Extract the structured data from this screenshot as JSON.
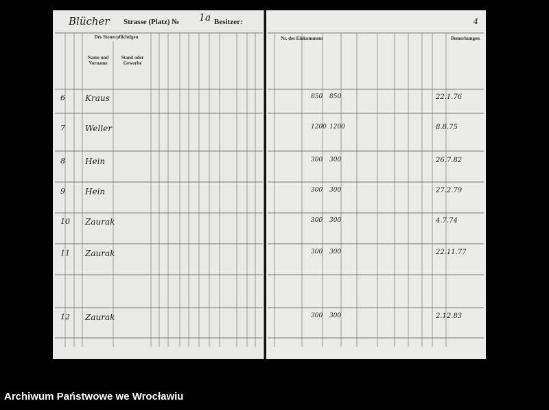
{
  "page": {
    "street": "Blücher",
    "street_label": "Strasse (Platz) №",
    "number": "1a",
    "owner_label": "Besitzer:",
    "page_number": "4",
    "headers": [
      "Des Steuerpflichtigen",
      "Name und Vorname",
      "Stand oder Gewerbe",
      "Nr. des Einkommens",
      "Bemerkungen"
    ],
    "entries": [
      {
        "num": "6",
        "name": "Kraus",
        "amount": "850",
        "date": "22.1.76"
      },
      {
        "num": "7",
        "name": "Weller",
        "amount": "1200",
        "date": "8.8.75"
      },
      {
        "num": "8",
        "name": "Hein",
        "amount": "300",
        "date": "26.7.82"
      },
      {
        "num": "9",
        "name": "Hein",
        "amount": "300",
        "date": "27.2.79"
      },
      {
        "num": "10",
        "name": "Zaurak",
        "amount": "300",
        "date": "4.7.74"
      },
      {
        "num": "11",
        "name": "Zaurak",
        "amount": "300",
        "date": "22.11.77"
      },
      {
        "num": "12",
        "name": "Zaurak",
        "amount": "300",
        "date": "2.12.83"
      }
    ]
  },
  "footer": {
    "archive": "Archiwum Państwowe we Wrocławiu"
  }
}
